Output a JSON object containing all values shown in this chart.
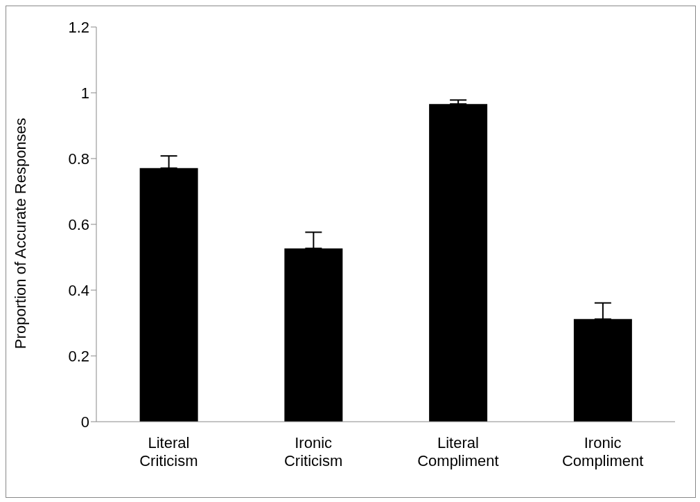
{
  "chart_data": {
    "type": "bar",
    "ylabel": "Proportion of Accurate Responses",
    "categories": [
      "Literal Criticism",
      "Ironic Criticism",
      "Literal Compliment",
      "Ironic Compliment"
    ],
    "values": [
      0.771,
      0.527,
      0.966,
      0.312
    ],
    "errors": [
      [
        0.771,
        0.808
      ],
      [
        0.527,
        0.576
      ],
      [
        0.966,
        0.978
      ],
      [
        0.312,
        0.361
      ]
    ],
    "color": "#000000",
    "ylim": [
      0,
      1.2
    ],
    "yticks": [
      0,
      0.2,
      0.4,
      0.6,
      0.8,
      1,
      1.2
    ],
    "grid": false,
    "legend": false
  }
}
